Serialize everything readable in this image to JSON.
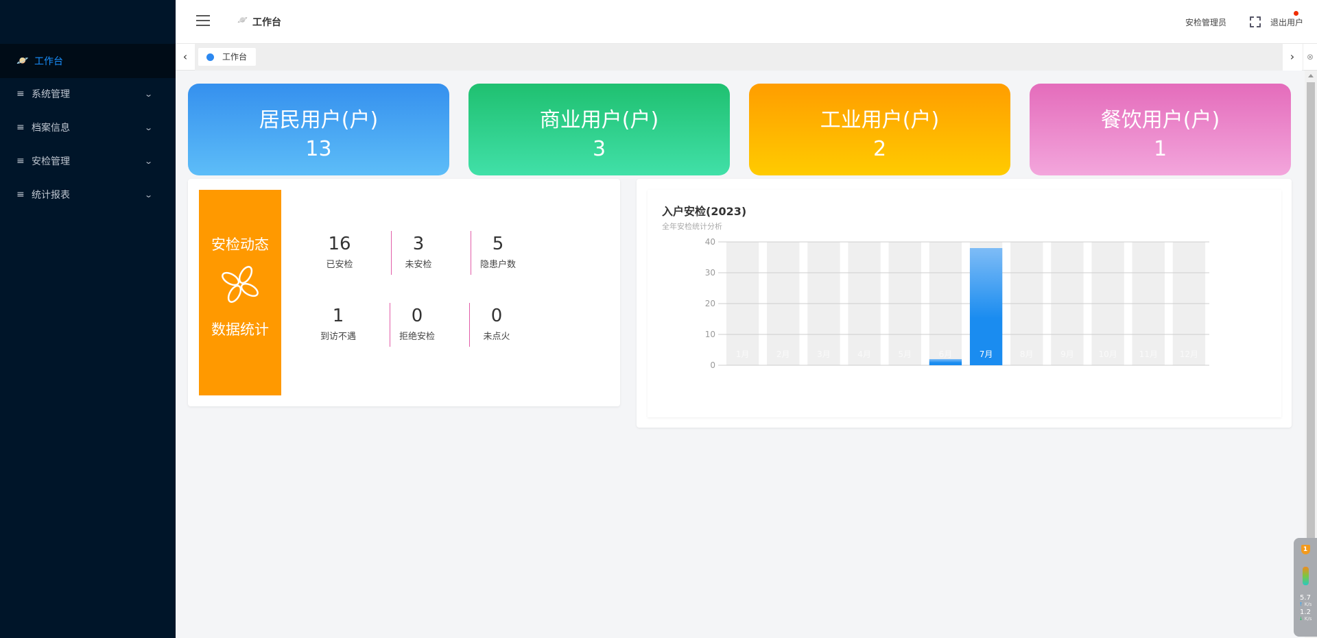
{
  "sidebar": {
    "items": [
      {
        "label": "工作台",
        "icon": "planet-icon",
        "active": true
      },
      {
        "label": "系统管理",
        "icon": "menu-icon"
      },
      {
        "label": "档案信息",
        "icon": "menu-icon"
      },
      {
        "label": "安检管理",
        "icon": "menu-icon"
      },
      {
        "label": "统计报表",
        "icon": "menu-icon"
      }
    ]
  },
  "header": {
    "title": "工作台",
    "user": "安检管理员",
    "logout": "退出用户"
  },
  "tabs": [
    {
      "label": "工作台"
    }
  ],
  "cards": [
    {
      "title": "居民用户(户)",
      "value": "13",
      "colors": [
        "#3590ee",
        "#5dbdf8"
      ]
    },
    {
      "title": "商业用户(户)",
      "value": "3",
      "colors": [
        "#1fc070",
        "#41e0a8"
      ]
    },
    {
      "title": "工业用户(户)",
      "value": "2",
      "colors": [
        "#ff9d00",
        "#ffcb00"
      ]
    },
    {
      "title": "餐饮用户(户)",
      "value": "1",
      "colors": [
        "#e46cbb",
        "#f3a6dc"
      ]
    }
  ],
  "stats": {
    "title1": "安检动态",
    "title2": "数据统计",
    "items": [
      {
        "value": "16",
        "label": "已安检"
      },
      {
        "value": "3",
        "label": "未安检"
      },
      {
        "value": "5",
        "label": "隐患户数"
      },
      {
        "value": "1",
        "label": "到访不遇"
      },
      {
        "value": "0",
        "label": "拒绝安检"
      },
      {
        "value": "0",
        "label": "未点火"
      }
    ]
  },
  "chart_data": {
    "type": "bar",
    "title": "入户安检(2023)",
    "subtitle": "全年安检统计分析",
    "categories": [
      "1月",
      "2月",
      "3月",
      "4月",
      "5月",
      "6月",
      "7月",
      "8月",
      "9月",
      "10月",
      "11月",
      "12月"
    ],
    "values": [
      0,
      0,
      0,
      0,
      0,
      2,
      38,
      0,
      0,
      0,
      0,
      0
    ],
    "ylim": [
      0,
      40
    ],
    "yticks": [
      "0",
      "10",
      "20",
      "30",
      "40"
    ],
    "grid": true,
    "color": "#1a8cf0",
    "background_bar_color": "#efefef"
  },
  "net_widget": {
    "badge": "1",
    "up": "5.7",
    "down": "1.2",
    "unit": "K/s"
  }
}
